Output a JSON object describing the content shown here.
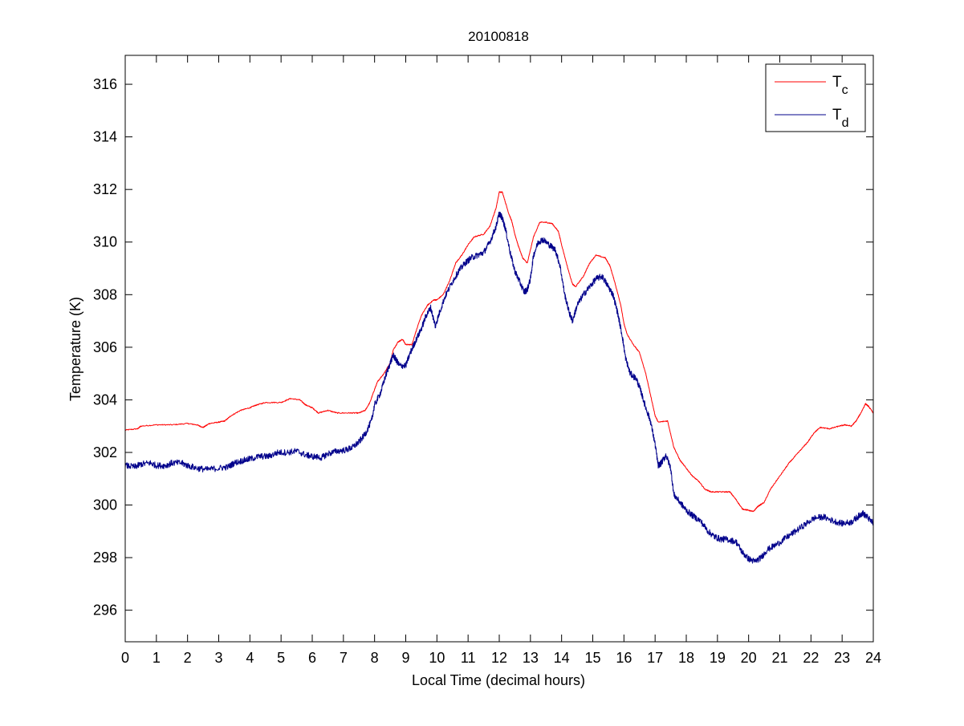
{
  "chart_data": {
    "type": "line",
    "title": "20100818",
    "xlabel": "Local Time (decimal hours)",
    "ylabel": "Temperature (K)",
    "xlim": [
      0,
      24
    ],
    "ylim": [
      294.8,
      317.1
    ],
    "xticks": [
      0,
      1,
      2,
      3,
      4,
      5,
      6,
      7,
      8,
      9,
      10,
      11,
      12,
      13,
      14,
      15,
      16,
      17,
      18,
      19,
      20,
      21,
      22,
      23,
      24
    ],
    "yticks": [
      296,
      298,
      300,
      302,
      304,
      306,
      308,
      310,
      312,
      314,
      316
    ],
    "grid": false,
    "legend": {
      "position": "top-right",
      "entries": [
        {
          "main": "T",
          "sub": "c",
          "color": "#ff0000"
        },
        {
          "main": "T",
          "sub": "d",
          "color": "#00008b"
        }
      ]
    },
    "series": [
      {
        "color": "#ff0000",
        "points": [
          [
            0.0,
            302.85
          ],
          [
            0.4,
            302.9
          ],
          [
            0.5,
            303.0
          ],
          [
            1.0,
            303.05
          ],
          [
            1.5,
            303.05
          ],
          [
            2.0,
            303.1
          ],
          [
            2.3,
            303.05
          ],
          [
            2.5,
            302.95
          ],
          [
            2.7,
            303.1
          ],
          [
            3.0,
            303.15
          ],
          [
            3.2,
            303.2
          ],
          [
            3.4,
            303.4
          ],
          [
            3.7,
            303.6
          ],
          [
            4.0,
            303.7
          ],
          [
            4.2,
            303.8
          ],
          [
            4.5,
            303.9
          ],
          [
            5.0,
            303.9
          ],
          [
            5.3,
            304.05
          ],
          [
            5.6,
            304.0
          ],
          [
            5.8,
            303.8
          ],
          [
            6.0,
            303.7
          ],
          [
            6.2,
            303.5
          ],
          [
            6.5,
            303.6
          ],
          [
            6.8,
            303.5
          ],
          [
            7.2,
            303.5
          ],
          [
            7.5,
            303.5
          ],
          [
            7.7,
            303.6
          ],
          [
            7.85,
            303.9
          ],
          [
            8.0,
            304.4
          ],
          [
            8.1,
            304.7
          ],
          [
            8.3,
            305.0
          ],
          [
            8.5,
            305.4
          ],
          [
            8.6,
            305.9
          ],
          [
            8.75,
            306.2
          ],
          [
            8.9,
            306.3
          ],
          [
            9.0,
            306.1
          ],
          [
            9.2,
            306.1
          ],
          [
            9.3,
            306.5
          ],
          [
            9.5,
            307.2
          ],
          [
            9.7,
            307.6
          ],
          [
            9.9,
            307.8
          ],
          [
            10.0,
            307.8
          ],
          [
            10.2,
            308.0
          ],
          [
            10.4,
            308.5
          ],
          [
            10.6,
            309.2
          ],
          [
            10.8,
            309.5
          ],
          [
            11.0,
            309.9
          ],
          [
            11.2,
            310.2
          ],
          [
            11.5,
            310.3
          ],
          [
            11.7,
            310.6
          ],
          [
            11.9,
            311.3
          ],
          [
            12.0,
            311.9
          ],
          [
            12.1,
            311.9
          ],
          [
            12.3,
            311.1
          ],
          [
            12.4,
            310.8
          ],
          [
            12.5,
            310.3
          ],
          [
            12.6,
            309.9
          ],
          [
            12.75,
            309.4
          ],
          [
            12.9,
            309.2
          ],
          [
            13.1,
            310.2
          ],
          [
            13.3,
            310.75
          ],
          [
            13.5,
            310.75
          ],
          [
            13.7,
            310.7
          ],
          [
            13.9,
            310.4
          ],
          [
            14.0,
            309.9
          ],
          [
            14.2,
            309.0
          ],
          [
            14.35,
            308.4
          ],
          [
            14.45,
            308.3
          ],
          [
            14.7,
            308.7
          ],
          [
            14.9,
            309.2
          ],
          [
            15.1,
            309.5
          ],
          [
            15.4,
            309.4
          ],
          [
            15.55,
            309.1
          ],
          [
            15.7,
            308.5
          ],
          [
            15.9,
            307.6
          ],
          [
            16.0,
            306.9
          ],
          [
            16.1,
            306.5
          ],
          [
            16.3,
            306.1
          ],
          [
            16.5,
            305.8
          ],
          [
            16.7,
            305.0
          ],
          [
            16.85,
            304.2
          ],
          [
            17.0,
            303.4
          ],
          [
            17.1,
            303.15
          ],
          [
            17.4,
            303.2
          ],
          [
            17.6,
            302.2
          ],
          [
            17.8,
            301.7
          ],
          [
            18.0,
            301.4
          ],
          [
            18.2,
            301.1
          ],
          [
            18.4,
            300.9
          ],
          [
            18.6,
            300.6
          ],
          [
            18.8,
            300.5
          ],
          [
            19.1,
            300.5
          ],
          [
            19.4,
            300.5
          ],
          [
            19.6,
            300.2
          ],
          [
            19.8,
            299.85
          ],
          [
            20.0,
            299.8
          ],
          [
            20.15,
            299.75
          ],
          [
            20.3,
            299.95
          ],
          [
            20.5,
            300.1
          ],
          [
            20.7,
            300.6
          ],
          [
            21.0,
            301.1
          ],
          [
            21.3,
            301.6
          ],
          [
            21.6,
            302.0
          ],
          [
            21.9,
            302.4
          ],
          [
            22.1,
            302.75
          ],
          [
            22.3,
            302.95
          ],
          [
            22.6,
            302.9
          ],
          [
            22.9,
            303.0
          ],
          [
            23.1,
            303.05
          ],
          [
            23.3,
            303.0
          ],
          [
            23.45,
            303.2
          ],
          [
            23.6,
            303.5
          ],
          [
            23.75,
            303.85
          ],
          [
            23.85,
            303.75
          ],
          [
            24.0,
            303.5
          ]
        ]
      },
      {
        "color": "#00008b",
        "points": [
          [
            0.0,
            301.5
          ],
          [
            0.3,
            301.45
          ],
          [
            0.5,
            301.55
          ],
          [
            0.8,
            301.6
          ],
          [
            1.0,
            301.5
          ],
          [
            1.3,
            301.5
          ],
          [
            1.5,
            301.6
          ],
          [
            1.8,
            301.6
          ],
          [
            2.0,
            301.5
          ],
          [
            2.3,
            301.4
          ],
          [
            2.6,
            301.35
          ],
          [
            3.0,
            301.4
          ],
          [
            3.3,
            301.45
          ],
          [
            3.5,
            301.6
          ],
          [
            3.8,
            301.7
          ],
          [
            4.0,
            301.75
          ],
          [
            4.3,
            301.85
          ],
          [
            4.6,
            301.85
          ],
          [
            4.9,
            302.0
          ],
          [
            5.2,
            302.0
          ],
          [
            5.5,
            302.05
          ],
          [
            5.8,
            301.9
          ],
          [
            6.0,
            301.85
          ],
          [
            6.3,
            301.8
          ],
          [
            6.5,
            301.95
          ],
          [
            6.8,
            302.05
          ],
          [
            7.1,
            302.1
          ],
          [
            7.3,
            302.2
          ],
          [
            7.5,
            302.4
          ],
          [
            7.7,
            302.7
          ],
          [
            7.9,
            303.2
          ],
          [
            8.0,
            303.8
          ],
          [
            8.2,
            304.3
          ],
          [
            8.35,
            304.9
          ],
          [
            8.5,
            305.4
          ],
          [
            8.6,
            305.7
          ],
          [
            8.7,
            305.5
          ],
          [
            8.8,
            305.3
          ],
          [
            9.0,
            305.3
          ],
          [
            9.15,
            305.8
          ],
          [
            9.3,
            306.2
          ],
          [
            9.5,
            306.7
          ],
          [
            9.65,
            307.2
          ],
          [
            9.8,
            307.5
          ],
          [
            9.95,
            306.8
          ],
          [
            10.05,
            307.2
          ],
          [
            10.25,
            307.9
          ],
          [
            10.5,
            308.5
          ],
          [
            10.7,
            308.9
          ],
          [
            10.9,
            309.2
          ],
          [
            11.1,
            309.4
          ],
          [
            11.3,
            309.5
          ],
          [
            11.5,
            309.6
          ],
          [
            11.7,
            310.0
          ],
          [
            11.9,
            310.6
          ],
          [
            12.0,
            311.1
          ],
          [
            12.1,
            310.9
          ],
          [
            12.2,
            310.5
          ],
          [
            12.35,
            309.6
          ],
          [
            12.5,
            308.9
          ],
          [
            12.65,
            308.5
          ],
          [
            12.8,
            308.1
          ],
          [
            12.9,
            308.2
          ],
          [
            13.0,
            308.6
          ],
          [
            13.1,
            309.5
          ],
          [
            13.25,
            310.0
          ],
          [
            13.4,
            310.1
          ],
          [
            13.6,
            309.9
          ],
          [
            13.8,
            309.7
          ],
          [
            13.95,
            309.1
          ],
          [
            14.1,
            308.0
          ],
          [
            14.25,
            307.3
          ],
          [
            14.35,
            307.0
          ],
          [
            14.5,
            307.6
          ],
          [
            14.7,
            308.0
          ],
          [
            14.9,
            308.3
          ],
          [
            15.1,
            308.6
          ],
          [
            15.3,
            308.7
          ],
          [
            15.5,
            308.3
          ],
          [
            15.65,
            308.0
          ],
          [
            15.8,
            307.3
          ],
          [
            15.95,
            306.4
          ],
          [
            16.05,
            305.6
          ],
          [
            16.2,
            305.0
          ],
          [
            16.4,
            304.8
          ],
          [
            16.55,
            304.3
          ],
          [
            16.7,
            303.7
          ],
          [
            16.85,
            303.2
          ],
          [
            17.0,
            302.3
          ],
          [
            17.1,
            301.5
          ],
          [
            17.2,
            301.6
          ],
          [
            17.35,
            301.9
          ],
          [
            17.5,
            301.4
          ],
          [
            17.6,
            300.4
          ],
          [
            17.8,
            300.1
          ],
          [
            18.0,
            299.8
          ],
          [
            18.2,
            299.6
          ],
          [
            18.45,
            299.4
          ],
          [
            18.7,
            299.0
          ],
          [
            18.9,
            298.8
          ],
          [
            19.1,
            298.7
          ],
          [
            19.3,
            298.7
          ],
          [
            19.6,
            298.6
          ],
          [
            19.8,
            298.2
          ],
          [
            20.0,
            297.95
          ],
          [
            20.2,
            297.85
          ],
          [
            20.4,
            298.0
          ],
          [
            20.6,
            298.3
          ],
          [
            20.9,
            298.5
          ],
          [
            21.2,
            298.75
          ],
          [
            21.5,
            299.0
          ],
          [
            21.8,
            299.25
          ],
          [
            22.1,
            299.5
          ],
          [
            22.4,
            299.55
          ],
          [
            22.7,
            299.4
          ],
          [
            23.0,
            299.3
          ],
          [
            23.3,
            299.35
          ],
          [
            23.5,
            299.55
          ],
          [
            23.65,
            299.7
          ],
          [
            23.8,
            299.55
          ],
          [
            24.0,
            299.3
          ]
        ]
      }
    ]
  }
}
